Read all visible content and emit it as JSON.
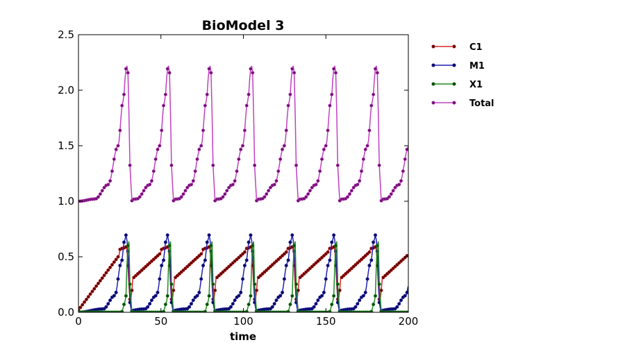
{
  "chart_data": {
    "type": "line",
    "title": "BioModel 3",
    "xlabel": "time",
    "ylabel": "",
    "xlim": [
      0,
      200
    ],
    "ylim": [
      0,
      2.5
    ],
    "xticks": [
      "0",
      "50",
      "100",
      "150",
      "200"
    ],
    "yticks": [
      "0.0",
      "0.5",
      "1.0",
      "1.5",
      "2.0",
      "2.5"
    ],
    "grid": false,
    "legend_position": "outside-right-top",
    "period": 25.2,
    "series": [
      {
        "name": "C1",
        "color": "#d62728",
        "marker_fill": "#5a0000"
      },
      {
        "name": "M1",
        "color": "#2020b0",
        "marker_fill": "#0a0a60"
      },
      {
        "name": "X1",
        "color": "#1f8a1f",
        "marker_fill": "#0b4a0b"
      },
      {
        "name": "Total",
        "color": "#c040c0",
        "marker_fill": "#701070"
      }
    ],
    "cycle_shape": {
      "C1": [
        [
          0,
          0.02
        ],
        [
          28,
          0.58
        ],
        [
          29,
          0.59
        ],
        [
          31.5,
          0.1
        ],
        [
          32.5,
          0.2
        ]
      ],
      "M1": [
        [
          0,
          0.0
        ],
        [
          15,
          0.03
        ],
        [
          22,
          0.15
        ],
        [
          26,
          0.45
        ],
        [
          28,
          0.65
        ],
        [
          29,
          0.7
        ],
        [
          30,
          0.55
        ],
        [
          31.5,
          0.04
        ],
        [
          33,
          0.0
        ]
      ],
      "X1": [
        [
          0,
          0.0
        ],
        [
          26,
          0.0
        ],
        [
          28.5,
          0.1
        ],
        [
          30,
          0.6
        ],
        [
          30.5,
          0.65
        ],
        [
          31.5,
          0.15
        ],
        [
          32.5,
          0.0
        ]
      ],
      "Total": [
        [
          0,
          1.0
        ],
        [
          10,
          1.02
        ],
        [
          18,
          1.15
        ],
        [
          24,
          1.5
        ],
        [
          27,
          1.9
        ],
        [
          29,
          2.2
        ],
        [
          29.8,
          2.24
        ],
        [
          30.5,
          1.8
        ],
        [
          31.5,
          1.2
        ],
        [
          32.5,
          1.0
        ]
      ]
    }
  }
}
